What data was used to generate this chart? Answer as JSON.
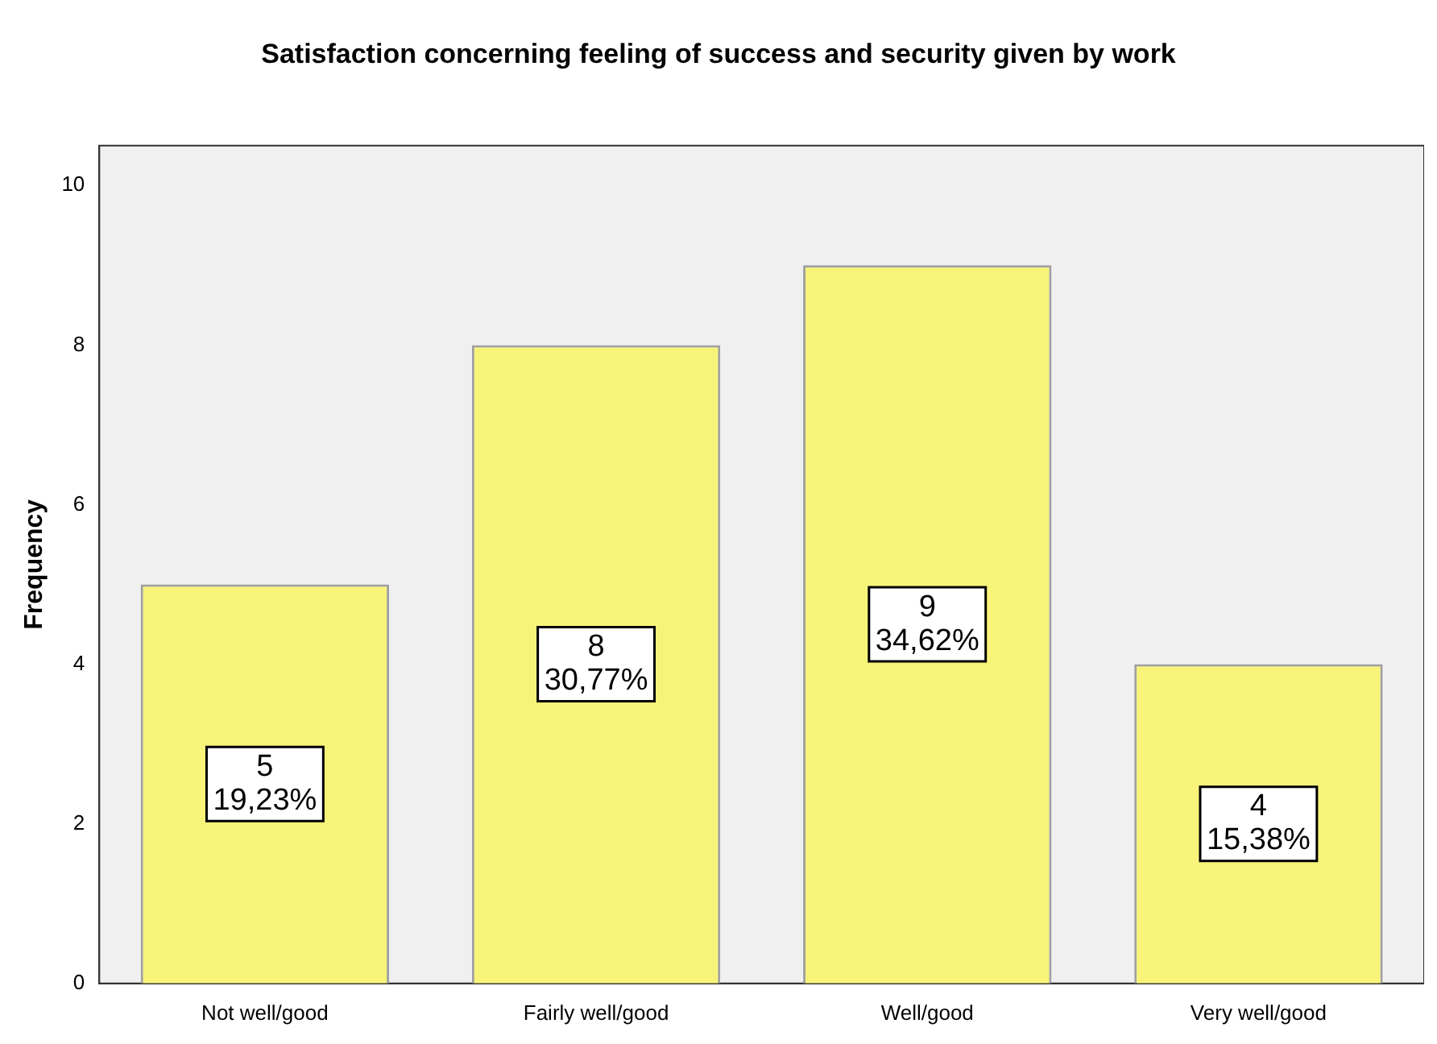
{
  "chart_data": {
    "type": "bar",
    "title": "Satisfaction concerning feeling of success and security given by work",
    "ylabel": "Frequency",
    "categories": [
      "Not well/good",
      "Fairly well/good",
      "Well/good",
      "Very well/good"
    ],
    "values": [
      5,
      8,
      9,
      4
    ],
    "value_labels": [
      "5\n19,23%",
      "8\n30,77%",
      "9\n34,62%",
      "4\n15,38%"
    ],
    "color": "#f8f47a",
    "ylim": [
      0,
      10.5
    ],
    "yticks": [
      0,
      2,
      4,
      6,
      8,
      10
    ],
    "grid": false
  }
}
